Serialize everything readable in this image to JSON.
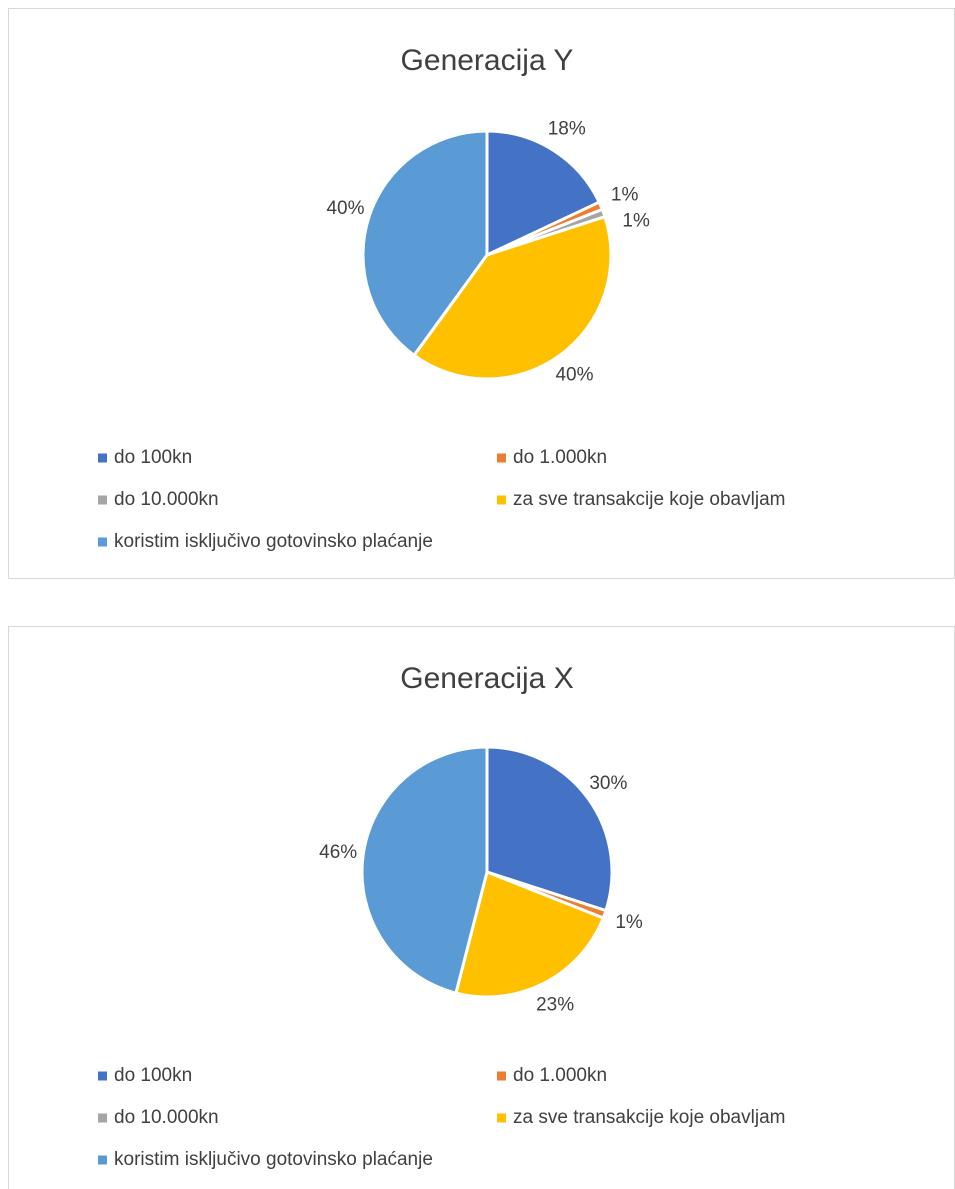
{
  "chart_data": [
    {
      "type": "pie",
      "title": "Generacija Y",
      "categories": [
        "do 100kn",
        "do 1.000kn",
        "do 10.000kn",
        "za sve transakcije koje obavljam",
        "koristim isključivo gotovinsko plaćanje"
      ],
      "values": [
        18,
        1,
        1,
        40,
        40
      ],
      "value_labels": [
        "18%",
        "1%",
        "1%",
        "40%",
        "40%"
      ],
      "colors": [
        "#4472c4",
        "#ed7d31",
        "#a5a5a5",
        "#ffc000",
        "#5b9bd5"
      ],
      "legend": "bottom"
    },
    {
      "type": "pie",
      "title": "Generacija X",
      "categories": [
        "do 100kn",
        "do 1.000kn",
        "do 10.000kn",
        "za sve transakcije koje obavljam",
        "koristim isključivo gotovinsko plaćanje"
      ],
      "values": [
        30,
        1,
        0,
        23,
        46
      ],
      "value_labels": [
        "30%",
        "1%",
        null,
        "23%",
        "46%"
      ],
      "colors": [
        "#4472c4",
        "#ed7d31",
        "#a5a5a5",
        "#ffc000",
        "#5b9bd5"
      ],
      "legend": "bottom"
    }
  ]
}
